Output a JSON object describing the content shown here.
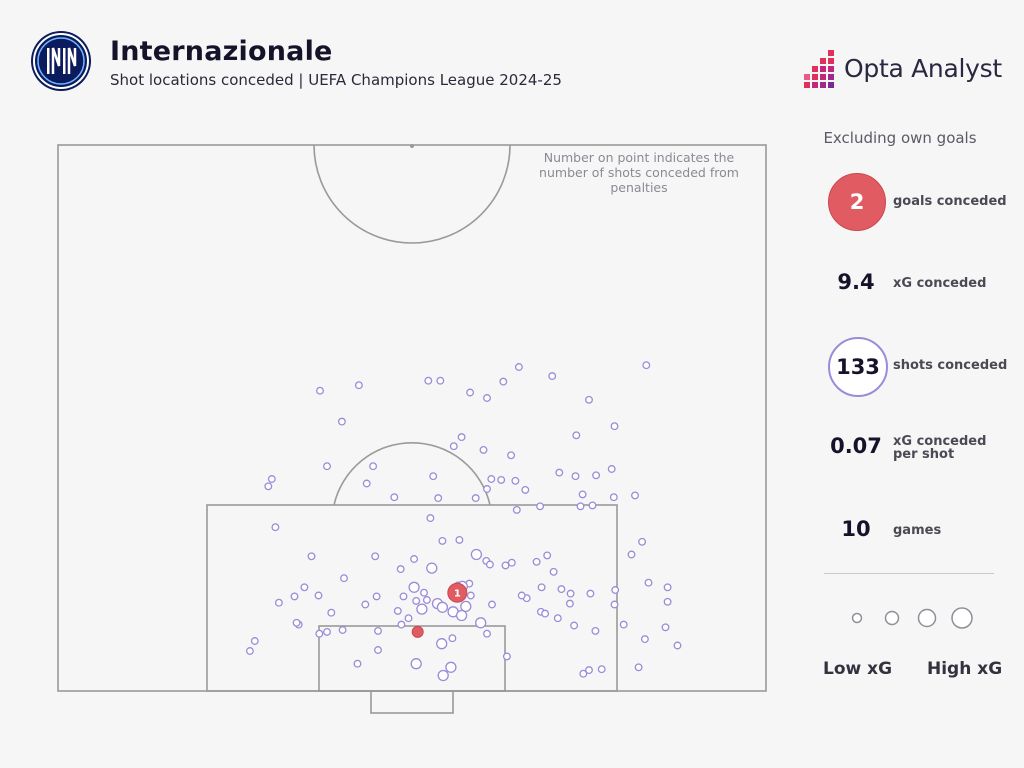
{
  "header": {
    "title": "Internazionale",
    "subtitle": "Shot locations conceded | UEFA Champions League 2024-25",
    "brand": "Opta Analyst",
    "club_logo_icon": "inter-milan-crest-icon",
    "brand_logo_icon": "opta-bars-icon"
  },
  "note": "Number on point indicates the number of shots conceded from penalties",
  "sidebar": {
    "title": "Excluding own goals",
    "stats": [
      {
        "value": "2",
        "label": "goals conceded",
        "style": "filled-red"
      },
      {
        "value": "9.4",
        "label": "xG conceded",
        "style": "plain"
      },
      {
        "value": "133",
        "label": "shots conceded",
        "style": "outlined-purple"
      },
      {
        "value": "0.07",
        "label": "xG conceded per shot",
        "style": "plain"
      },
      {
        "value": "10",
        "label": "games",
        "style": "plain"
      }
    ],
    "legend": {
      "low": "Low xG",
      "high": "High xG"
    }
  },
  "colors": {
    "shot": "#9b8bd8",
    "goal": "#e15c62",
    "pitch_line": "#9a9a9a",
    "background": "#f6f6f6"
  },
  "chart_data": {
    "type": "scatter",
    "title": "Internazionale",
    "subtitle": "Shot locations conceded | UEFA Champions League 2024-25",
    "axes": "pitch coordinates, x across the pitch 0-100 (left to right), y distance from the goal line in metres",
    "xlim": [
      0,
      100
    ],
    "ylim": [
      0,
      60
    ],
    "grid": false,
    "legend": "right",
    "shots": [
      [
        37.0,
        33.0,
        1
      ],
      [
        40.1,
        29.6,
        1
      ],
      [
        62.9,
        34.0,
        1
      ],
      [
        42.5,
        33.6,
        1
      ],
      [
        52.3,
        34.1,
        1
      ],
      [
        54.0,
        34.1,
        1
      ],
      [
        58.2,
        32.8,
        1
      ],
      [
        60.6,
        32.2,
        1
      ],
      [
        65.1,
        35.6,
        1
      ],
      [
        69.8,
        34.6,
        1
      ],
      [
        75.0,
        32.0,
        1
      ],
      [
        78.6,
        29.1,
        1
      ],
      [
        83.1,
        35.8,
        1
      ],
      [
        44.5,
        24.7,
        1
      ],
      [
        55.9,
        26.9,
        1
      ],
      [
        57.0,
        27.9,
        1
      ],
      [
        60.1,
        26.5,
        1
      ],
      [
        64.0,
        25.9,
        1
      ],
      [
        73.2,
        28.1,
        1
      ],
      [
        62.6,
        23.2,
        1
      ],
      [
        38.0,
        24.7,
        1
      ],
      [
        43.6,
        22.8,
        1
      ],
      [
        47.5,
        21.3,
        1
      ],
      [
        53.0,
        23.6,
        1
      ],
      [
        64.6,
        23.1,
        1
      ],
      [
        64.8,
        19.9,
        1
      ],
      [
        70.8,
        24.0,
        1
      ],
      [
        73.1,
        23.6,
        1
      ],
      [
        78.2,
        24.4,
        1
      ],
      [
        30.2,
        23.3,
        1
      ],
      [
        29.7,
        22.5,
        1
      ],
      [
        30.7,
        18.0,
        1
      ],
      [
        52.6,
        19.0,
        1
      ],
      [
        53.7,
        21.2,
        1
      ],
      [
        59.0,
        21.2,
        1
      ],
      [
        60.6,
        22.2,
        1
      ],
      [
        61.2,
        23.3,
        1
      ],
      [
        66.0,
        22.1,
        1
      ],
      [
        68.1,
        20.3,
        1
      ],
      [
        73.8,
        20.3,
        1
      ],
      [
        74.1,
        21.6,
        1
      ],
      [
        75.5,
        20.4,
        1
      ],
      [
        76.0,
        23.7,
        1
      ],
      [
        78.5,
        21.3,
        1
      ],
      [
        81.5,
        21.5,
        1
      ],
      [
        82.5,
        16.4,
        1
      ],
      [
        44.8,
        14.8,
        1
      ],
      [
        60.5,
        14.3,
        1
      ],
      [
        54.3,
        16.5,
        1
      ],
      [
        61.0,
        13.9,
        1
      ],
      [
        64.1,
        14.1,
        1
      ],
      [
        67.6,
        14.2,
        1
      ],
      [
        69.1,
        14.9,
        1
      ],
      [
        70.0,
        13.1,
        1
      ],
      [
        81.0,
        15.0,
        1
      ],
      [
        48.4,
        13.4,
        1
      ],
      [
        50.3,
        14.5,
        1
      ],
      [
        56.7,
        16.6,
        1
      ],
      [
        52.1,
        10.0,
        1
      ],
      [
        56.5,
        11.6,
        1
      ],
      [
        63.2,
        13.8,
        1
      ],
      [
        66.2,
        10.2,
        1
      ],
      [
        34.0,
        7.3,
        1
      ],
      [
        38.0,
        6.5,
        1
      ],
      [
        40.2,
        6.7,
        1
      ],
      [
        45.2,
        6.6,
        1
      ],
      [
        48.0,
        8.8,
        1
      ],
      [
        49.5,
        8.0,
        1
      ],
      [
        50.8,
        6.6,
        1
      ],
      [
        55.7,
        5.8,
        1
      ],
      [
        60.6,
        6.3,
        1
      ],
      [
        63.4,
        3.8,
        1
      ],
      [
        68.2,
        8.7,
        1
      ],
      [
        70.6,
        8.0,
        1
      ],
      [
        71.1,
        11.2,
        1
      ],
      [
        72.4,
        10.7,
        1
      ],
      [
        72.3,
        9.6,
        1
      ],
      [
        72.9,
        7.2,
        1
      ],
      [
        68.8,
        8.5,
        1
      ],
      [
        75.9,
        6.6,
        1
      ],
      [
        78.6,
        9.5,
        1
      ],
      [
        78.7,
        11.1,
        1
      ],
      [
        79.9,
        7.3,
        1
      ],
      [
        83.4,
        11.9,
        1
      ],
      [
        86.1,
        9.8,
        1
      ],
      [
        86.1,
        11.4,
        1
      ],
      [
        85.8,
        7.0,
        1
      ],
      [
        65.5,
        10.5,
        1
      ],
      [
        34.8,
        11.4,
        1
      ],
      [
        35.8,
        14.8,
        1
      ],
      [
        31.2,
        9.7,
        1
      ],
      [
        33.7,
        7.5,
        1
      ],
      [
        36.8,
        10.5,
        1
      ],
      [
        40.4,
        12.4,
        1
      ],
      [
        43.4,
        9.5,
        1
      ],
      [
        45.0,
        10.4,
        1
      ],
      [
        48.8,
        10.4,
        1
      ],
      [
        50.6,
        9.9,
        1
      ],
      [
        51.7,
        10.8,
        1
      ],
      [
        58.3,
        10.5,
        1
      ],
      [
        58.1,
        11.8,
        1
      ],
      [
        61.3,
        9.5,
        1
      ],
      [
        68.3,
        11.4,
        1
      ],
      [
        75.2,
        10.7,
        1
      ],
      [
        38.6,
        8.6,
        1
      ],
      [
        33.4,
        10.4,
        1
      ],
      [
        27.8,
        5.5,
        1
      ],
      [
        27.1,
        4.4,
        1
      ],
      [
        36.9,
        6.3,
        1
      ],
      [
        48.5,
        7.3,
        1
      ],
      [
        45.2,
        4.5,
        1
      ],
      [
        42.3,
        3.0,
        1
      ],
      [
        82.9,
        5.7,
        1
      ],
      [
        82.0,
        2.6,
        1
      ],
      [
        87.5,
        5.0,
        1
      ],
      [
        76.8,
        2.4,
        1
      ],
      [
        75.0,
        2.3,
        1
      ],
      [
        74.2,
        1.9,
        1
      ],
      [
        50.6,
        3.0,
        2
      ],
      [
        54.4,
        1.7,
        2
      ],
      [
        59.1,
        15.0,
        2
      ],
      [
        52.8,
        13.5,
        2
      ],
      [
        57.1,
        11.5,
        2
      ],
      [
        57.6,
        9.3,
        2
      ],
      [
        59.7,
        7.5,
        2
      ],
      [
        55.5,
        2.6,
        2
      ],
      [
        55.8,
        8.7,
        2
      ],
      [
        50.3,
        11.4,
        2
      ],
      [
        54.2,
        5.2,
        2
      ],
      [
        51.4,
        9.0,
        2
      ],
      [
        53.6,
        9.6,
        2
      ],
      [
        54.3,
        9.2,
        2
      ],
      [
        57.0,
        8.3,
        2
      ]
    ],
    "goals": [
      {
        "x": 56.4,
        "y": 10.8,
        "penalties": 1,
        "label": "1"
      },
      {
        "x": 50.8,
        "y": 6.5,
        "penalties": 0
      }
    ],
    "size_legend": [
      1,
      2,
      3,
      4
    ]
  }
}
